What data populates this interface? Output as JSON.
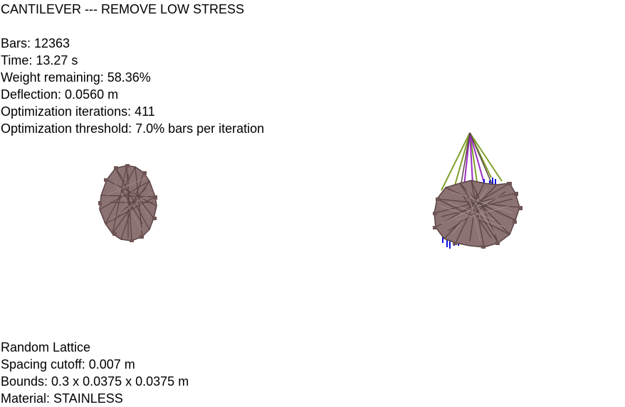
{
  "title": "CANTILEVER --- REMOVE LOW STRESS",
  "stats": {
    "bars": "Bars: 12363",
    "time": "Time: 13.27 s",
    "weight": "Weight remaining: 58.36%",
    "deflection": "Deflection: 0.0560 m",
    "iterations": "Optimization iterations: 411",
    "threshold": "Optimization threshold: 7.0% bars per iteration"
  },
  "info": {
    "lattice": "Random Lattice",
    "spacing": "Spacing cutoff: 0.007 m",
    "bounds": "Bounds: 0.3 x 0.0375 x 0.0375 m",
    "material": "Material: STAINLESS"
  },
  "colors": {
    "bar_fill": "#8c7272",
    "bar_edge": "#5a4444",
    "high_stress_green": "#7fa02a",
    "high_stress_purple": "#9b2fc0",
    "support_blue": "#1010e0"
  }
}
